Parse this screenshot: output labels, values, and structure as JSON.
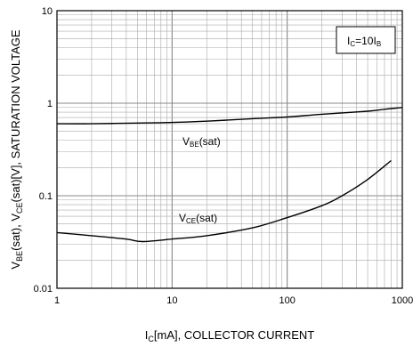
{
  "chart_data": {
    "type": "line",
    "xscale": "log",
    "yscale": "log",
    "xlim": [
      1,
      1000
    ],
    "ylim": [
      0.01,
      10
    ],
    "grid": true,
    "xticks": [
      {
        "value": 1,
        "label": "1"
      },
      {
        "value": 10,
        "label": "10"
      },
      {
        "value": 100,
        "label": "100"
      },
      {
        "value": 1000,
        "label": "1000"
      }
    ],
    "yticks": [
      {
        "value": 0.01,
        "label": "0.01"
      },
      {
        "value": 0.1,
        "label": "0.1"
      },
      {
        "value": 1,
        "label": "1"
      },
      {
        "value": 10,
        "label": "10"
      }
    ],
    "xlabel": {
      "main": "I",
      "sub": "C",
      "rest": "[mA], COLLECTOR CURRENT"
    },
    "ylabel": [
      {
        "t": "V",
        "sub": false
      },
      {
        "t": "BE",
        "sub": true
      },
      {
        "t": "(sat), V",
        "sub": false
      },
      {
        "t": "CE",
        "sub": true
      },
      {
        "t": "(sat)[V], SATURATION VOLTAGE",
        "sub": false
      }
    ],
    "condition": [
      {
        "t": "I",
        "sub": false
      },
      {
        "t": "C",
        "sub": true
      },
      {
        "t": "=10I",
        "sub": false
      },
      {
        "t": "B",
        "sub": true
      }
    ],
    "series": [
      {
        "name": "VBE(sat)",
        "label": [
          {
            "t": "V",
            "sub": false
          },
          {
            "t": "BE",
            "sub": true
          },
          {
            "t": "(sat)",
            "sub": false
          }
        ],
        "x": [
          1,
          2,
          5,
          10,
          20,
          50,
          100,
          200,
          500,
          700,
          1000
        ],
        "y": [
          0.6,
          0.6,
          0.61,
          0.62,
          0.64,
          0.68,
          0.71,
          0.76,
          0.82,
          0.86,
          0.9
        ]
      },
      {
        "name": "VCE(sat)",
        "label": [
          {
            "t": "V",
            "sub": false
          },
          {
            "t": "CE",
            "sub": true
          },
          {
            "t": "(sat)",
            "sub": false
          }
        ],
        "x": [
          1,
          2,
          4,
          5.5,
          10,
          20,
          50,
          100,
          200,
          300,
          500,
          800
        ],
        "y": [
          0.04,
          0.037,
          0.034,
          0.032,
          0.034,
          0.037,
          0.045,
          0.058,
          0.078,
          0.1,
          0.15,
          0.24
        ]
      }
    ]
  }
}
